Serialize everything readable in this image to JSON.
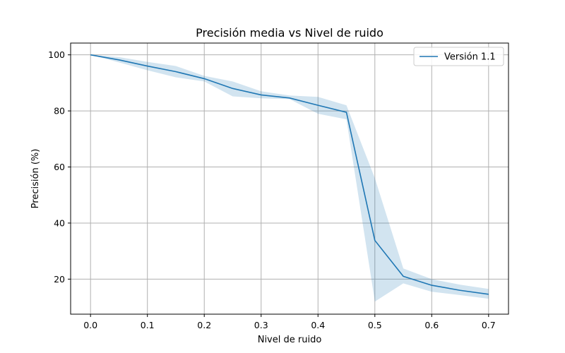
{
  "chart_data": {
    "type": "line",
    "title": "Precisión media vs Nivel de ruido",
    "xlabel": "Nivel de ruido",
    "ylabel": "Precisión (%)",
    "xlim": [
      -0.035,
      0.735
    ],
    "ylim": [
      7.5,
      104.2
    ],
    "xticks": [
      0.0,
      0.1,
      0.2,
      0.3,
      0.4,
      0.5,
      0.6,
      0.7
    ],
    "xtick_labels": [
      "0.0",
      "0.1",
      "0.2",
      "0.3",
      "0.4",
      "0.5",
      "0.6",
      "0.7"
    ],
    "yticks": [
      20,
      40,
      60,
      80,
      100
    ],
    "ytick_labels": [
      "20",
      "40",
      "60",
      "80",
      "100"
    ],
    "grid": true,
    "legend": {
      "position": "top-right"
    },
    "series": [
      {
        "name": "Versión 1.1",
        "color": "#1f77b4",
        "band_color": "#1f77b4",
        "x": [
          0.0,
          0.05,
          0.1,
          0.15,
          0.2,
          0.25,
          0.3,
          0.35,
          0.4,
          0.45,
          0.5,
          0.55,
          0.6,
          0.65,
          0.7
        ],
        "y": [
          100.0,
          98.2,
          96.0,
          94.0,
          91.5,
          88.0,
          85.7,
          84.6,
          82.0,
          79.5,
          33.8,
          21.0,
          17.8,
          16.0,
          14.6
        ],
        "lower": [
          100.0,
          97.3,
          94.5,
          92.0,
          90.5,
          85.2,
          84.5,
          84.2,
          79.0,
          77.0,
          12.0,
          18.5,
          15.5,
          14.3,
          13.0
        ],
        "upper": [
          100.0,
          99.2,
          97.5,
          96.0,
          92.5,
          90.5,
          87.0,
          85.5,
          85.0,
          82.0,
          56.0,
          23.8,
          20.0,
          18.0,
          16.5
        ]
      }
    ]
  }
}
